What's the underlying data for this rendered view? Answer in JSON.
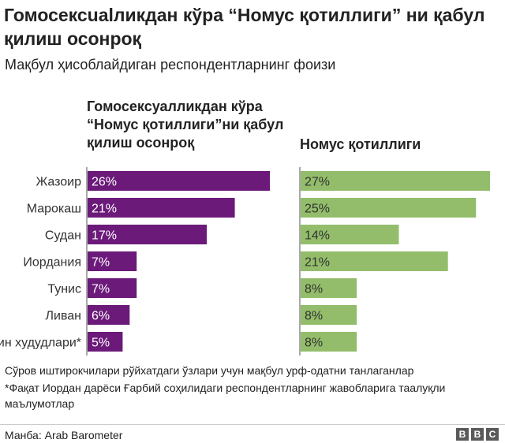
{
  "title": "Гомосексualликдан кўра “Номус қотиллиги” ни қабул қилиш осонроқ",
  "subtitle": "Мақбул ҳисоблайдиган респондентларнинг фоизи",
  "chart_data": [
    {
      "type": "bar",
      "orientation": "horizontal",
      "title": "Гомосексуалликдан кўра “Номус қотиллиги”ни қабул қилиш осонроқ",
      "categories": [
        "Жазоир",
        "Марокаш",
        "Судан",
        "Иордания",
        "Тунис",
        "Ливан",
        "Фаластин худудлари*"
      ],
      "values": [
        26,
        21,
        17,
        7,
        7,
        6,
        5
      ],
      "value_labels": [
        "26%",
        "21%",
        "17%",
        "7%",
        "7%",
        "6%",
        "5%"
      ],
      "unit": "%",
      "color": "#6b1a7a"
    },
    {
      "type": "bar",
      "orientation": "horizontal",
      "title": "Номус қотиллиги",
      "categories": [
        "Жазоир",
        "Марокаш",
        "Судан",
        "Иордания",
        "Тунис",
        "Ливан",
        "Фаластин худудлари*"
      ],
      "values": [
        27,
        25,
        14,
        21,
        8,
        8,
        8
      ],
      "value_labels": [
        "27%",
        "25%",
        "14%",
        "21%",
        "8%",
        "8%",
        "8%"
      ],
      "unit": "%",
      "color": "#93bd6a"
    }
  ],
  "notes": [
    "Сўров иштирокчилари рўйхатдаги ўзлари учун мақбул урф-одатни танлаганлар",
    "*Фақат Иордан дарёси Ғарбий соҳилидаги респондентларнинг жавобларига таалуқли маълумотлар"
  ],
  "source": "Манба: Arab Barometer",
  "logo": [
    "B",
    "B",
    "C"
  ]
}
